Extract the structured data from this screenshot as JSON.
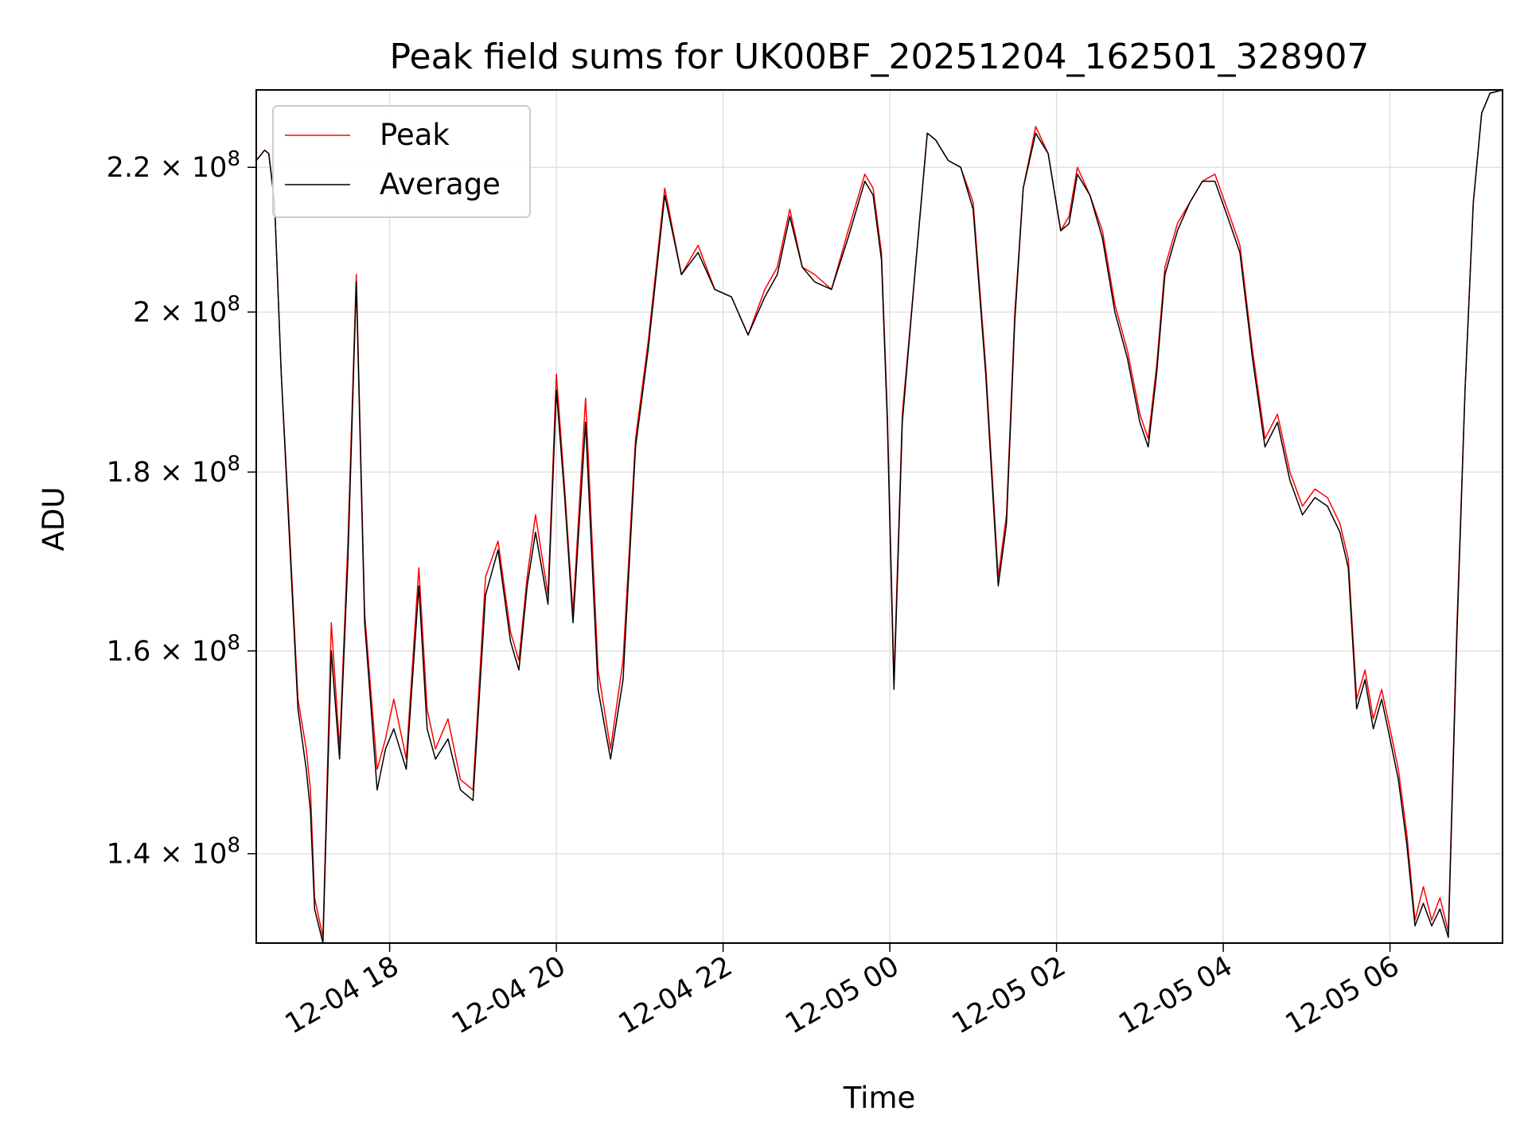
{
  "chart_data": {
    "type": "line",
    "title": "Peak field sums for UK00BF_20251204_162501_328907",
    "xlabel": "Time",
    "ylabel": "ADU",
    "yscale": "log",
    "ylim": [
      132000000,
      231500000
    ],
    "xlim_hours": [
      16.4,
      31.35
    ],
    "grid": true,
    "legend_position": "upper-left",
    "x_ticks": [
      {
        "label": "12-04 18",
        "hours": 18
      },
      {
        "label": "12-04 20",
        "hours": 20
      },
      {
        "label": "12-04 22",
        "hours": 22
      },
      {
        "label": "12-05 00",
        "hours": 24
      },
      {
        "label": "12-05 02",
        "hours": 26
      },
      {
        "label": "12-05 04",
        "hours": 28
      },
      {
        "label": "12-05 06",
        "hours": 30
      }
    ],
    "y_ticks": [
      {
        "value": 140000000,
        "mantissa": "1.4",
        "exponent": "8"
      },
      {
        "value": 160000000,
        "mantissa": "1.6",
        "exponent": "8"
      },
      {
        "value": 180000000,
        "mantissa": "1.8",
        "exponent": "8"
      },
      {
        "value": 200000000,
        "mantissa": "2",
        "exponent": "8"
      },
      {
        "value": 220000000,
        "mantissa": "2.2",
        "exponent": "8"
      }
    ],
    "series": [
      {
        "name": "Peak",
        "color": "#ff0000"
      },
      {
        "name": "Average",
        "color": "#000000"
      }
    ],
    "x_hours": [
      16.4,
      16.5,
      16.55,
      16.62,
      16.7,
      16.8,
      16.9,
      17.0,
      17.05,
      17.1,
      17.2,
      17.3,
      17.4,
      17.5,
      17.6,
      17.7,
      17.85,
      17.95,
      18.05,
      18.2,
      18.35,
      18.45,
      18.55,
      18.7,
      18.85,
      19.0,
      19.15,
      19.3,
      19.45,
      19.55,
      19.65,
      19.75,
      19.9,
      20.0,
      20.1,
      20.2,
      20.35,
      20.5,
      20.65,
      20.8,
      20.95,
      21.1,
      21.3,
      21.5,
      21.7,
      21.9,
      22.1,
      22.3,
      22.5,
      22.65,
      22.8,
      22.95,
      23.1,
      23.3,
      23.5,
      23.7,
      23.8,
      23.9,
      23.97,
      24.05,
      24.15,
      24.3,
      24.45,
      24.55,
      24.7,
      24.85,
      25.0,
      25.15,
      25.3,
      25.4,
      25.5,
      25.6,
      25.75,
      25.9,
      26.05,
      26.15,
      26.25,
      26.4,
      26.55,
      26.7,
      26.85,
      27.0,
      27.1,
      27.2,
      27.3,
      27.45,
      27.6,
      27.75,
      27.9,
      28.05,
      28.2,
      28.35,
      28.5,
      28.65,
      28.8,
      28.95,
      29.1,
      29.25,
      29.4,
      29.5,
      29.6,
      29.7,
      29.8,
      29.9,
      30.0,
      30.1,
      30.2,
      30.3,
      30.4,
      30.5,
      30.6,
      30.7,
      30.8,
      30.9,
      31.0,
      31.1,
      31.2,
      31.35
    ],
    "peak_values": [
      221000000,
      222500000,
      222000000,
      215000000,
      192000000,
      173000000,
      155000000,
      150000000,
      146000000,
      136000000,
      132500000,
      163000000,
      150000000,
      172000000,
      205000000,
      164000000,
      148000000,
      151000000,
      155000000,
      149000000,
      169000000,
      154000000,
      150000000,
      153000000,
      147000000,
      146000000,
      168000000,
      172000000,
      162000000,
      159000000,
      168000000,
      175000000,
      166000000,
      192000000,
      178000000,
      164000000,
      189000000,
      158000000,
      150000000,
      159000000,
      184000000,
      196000000,
      217000000,
      205000000,
      209000000,
      203000000,
      202000000,
      197000000,
      203000000,
      206000000,
      214000000,
      206000000,
      205000000,
      203000000,
      211000000,
      219000000,
      217000000,
      208000000,
      187000000,
      157000000,
      187000000,
      205000000,
      225000000,
      224000000,
      221000000,
      220000000,
      215000000,
      193000000,
      168000000,
      175000000,
      200000000,
      217000000,
      226000000,
      222000000,
      211000000,
      213000000,
      220000000,
      216000000,
      211000000,
      201000000,
      195000000,
      187000000,
      184000000,
      193000000,
      206000000,
      212000000,
      215000000,
      218000000,
      219000000,
      214000000,
      209000000,
      195000000,
      184000000,
      187000000,
      180000000,
      176000000,
      178000000,
      177000000,
      174000000,
      170000000,
      155000000,
      158000000,
      153000000,
      156000000,
      152000000,
      148000000,
      142000000,
      134000000,
      137000000,
      134000000,
      136000000,
      133000000,
      162000000,
      190000000,
      215000000,
      228000000,
      231000000,
      231500000
    ],
    "average_values": [
      221000000,
      222500000,
      222000000,
      215000000,
      192000000,
      172000000,
      154000000,
      148000000,
      144000000,
      135000000,
      132000000,
      160000000,
      149000000,
      170000000,
      204000000,
      163000000,
      146000000,
      150000000,
      152000000,
      148000000,
      167000000,
      152000000,
      149000000,
      151000000,
      146000000,
      145000000,
      166000000,
      171000000,
      161000000,
      158000000,
      167000000,
      173000000,
      165000000,
      190000000,
      177000000,
      163000000,
      186000000,
      156000000,
      149000000,
      157000000,
      183000000,
      195000000,
      216000000,
      205000000,
      208000000,
      203000000,
      202000000,
      197000000,
      202000000,
      205000000,
      213000000,
      206000000,
      204000000,
      203000000,
      210000000,
      218000000,
      216000000,
      207000000,
      186000000,
      156000000,
      186000000,
      205000000,
      225000000,
      224000000,
      221000000,
      220000000,
      214000000,
      192000000,
      167000000,
      174000000,
      199000000,
      217000000,
      225000000,
      222000000,
      211000000,
      212000000,
      219000000,
      216000000,
      210000000,
      200000000,
      194000000,
      186000000,
      183000000,
      192000000,
      205000000,
      211000000,
      215000000,
      218000000,
      218000000,
      213000000,
      208000000,
      194000000,
      183000000,
      186000000,
      179000000,
      175000000,
      177000000,
      176000000,
      173000000,
      169000000,
      154000000,
      157000000,
      152000000,
      155000000,
      151000000,
      147000000,
      141000000,
      133500000,
      135500000,
      133500000,
      135000000,
      132500000,
      161000000,
      190000000,
      215000000,
      228000000,
      231000000,
      231500000
    ]
  }
}
